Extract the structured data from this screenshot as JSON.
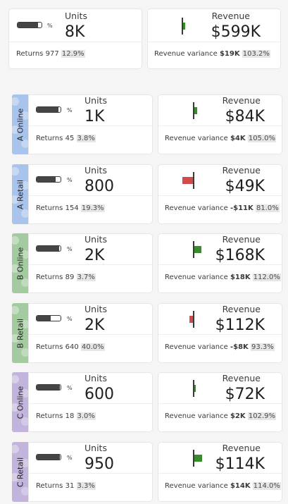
{
  "summary": {
    "units": {
      "label": "Units",
      "value": "8K",
      "gauge_pct_label": "%",
      "gauge_fill_fraction": 0.85,
      "returns_label": "Returns",
      "returns_value": "977",
      "returns_pct": "12.9%"
    },
    "revenue": {
      "label": "Revenue",
      "value": "$599K",
      "variance_label": "Revenue variance",
      "variance_value": "$19K",
      "variance_pct": "103.2%",
      "variance_fraction": 0.032
    }
  },
  "groups": [
    {
      "tab": "A Online",
      "tab_color": "#a9c4ec",
      "units": {
        "label": "Units",
        "value": "1K",
        "gauge_pct_label": "%",
        "gauge_fill_fraction": 0.92,
        "returns_label": "Returns",
        "returns_value": "45",
        "returns_pct": "3.8%"
      },
      "revenue": {
        "label": "Revenue",
        "value": "$84K",
        "variance_label": "Revenue variance",
        "variance_value": "$4K",
        "variance_pct": "105.0%",
        "variance_fraction": 0.05
      }
    },
    {
      "tab": "A Retail",
      "tab_color": "#a9c4ec",
      "units": {
        "label": "Units",
        "value": "800",
        "gauge_pct_label": "%",
        "gauge_fill_fraction": 0.8,
        "returns_label": "Returns",
        "returns_value": "154",
        "returns_pct": "19.3%"
      },
      "revenue": {
        "label": "Revenue",
        "value": "$49K",
        "variance_label": "Revenue variance",
        "variance_value": "-$11K",
        "variance_pct": "81.0%",
        "variance_fraction": -0.19
      }
    },
    {
      "tab": "B Online",
      "tab_color": "#a4cba0",
      "units": {
        "label": "Units",
        "value": "2K",
        "gauge_pct_label": "%",
        "gauge_fill_fraction": 0.95,
        "returns_label": "Returns",
        "returns_value": "89",
        "returns_pct": "3.7%"
      },
      "revenue": {
        "label": "Revenue",
        "value": "$168K",
        "variance_label": "Revenue variance",
        "variance_value": "$18K",
        "variance_pct": "112.0%",
        "variance_fraction": 0.12
      }
    },
    {
      "tab": "B Retail",
      "tab_color": "#a4cba0",
      "units": {
        "label": "Units",
        "value": "2K",
        "gauge_pct_label": "%",
        "gauge_fill_fraction": 0.6,
        "returns_label": "Returns",
        "returns_value": "640",
        "returns_pct": "40.0%"
      },
      "revenue": {
        "label": "Revenue",
        "value": "$112K",
        "variance_label": "Revenue variance",
        "variance_value": "-$8K",
        "variance_pct": "93.3%",
        "variance_fraction": -0.067
      }
    },
    {
      "tab": "C Online",
      "tab_color": "#c2b4dc",
      "units": {
        "label": "Units",
        "value": "600",
        "gauge_pct_label": "%",
        "gauge_fill_fraction": 0.97,
        "returns_label": "Returns",
        "returns_value": "18",
        "returns_pct": "3.0%"
      },
      "revenue": {
        "label": "Revenue",
        "value": "$72K",
        "variance_label": "Revenue variance",
        "variance_value": "$2K",
        "variance_pct": "102.9%",
        "variance_fraction": 0.029
      }
    },
    {
      "tab": "C Retail",
      "tab_color": "#c2b4dc",
      "units": {
        "label": "Units",
        "value": "950",
        "gauge_pct_label": "%",
        "gauge_fill_fraction": 0.96,
        "returns_label": "Returns",
        "returns_value": "31",
        "returns_pct": "3.3%"
      },
      "revenue": {
        "label": "Revenue",
        "value": "$114K",
        "variance_label": "Revenue variance",
        "variance_value": "$14K",
        "variance_pct": "114.0%",
        "variance_fraction": 0.14
      }
    }
  ],
  "colors": {
    "positive": "#3a8a2e",
    "negative": "#d24b48",
    "gauge_fill": "#454545"
  }
}
